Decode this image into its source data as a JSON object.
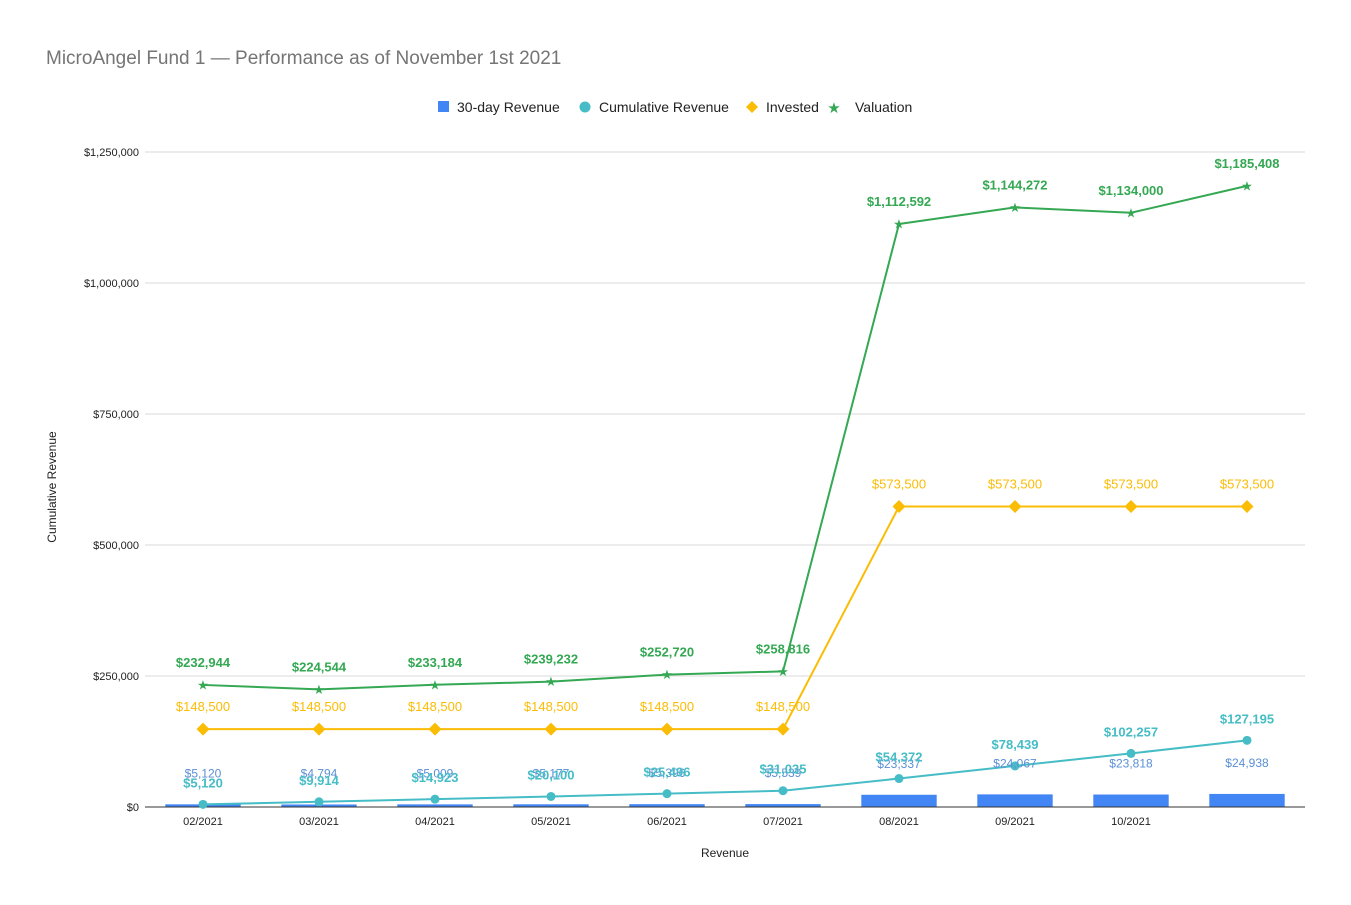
{
  "title": "MicroAngel Fund 1 — Performance as of November 1st 2021",
  "colors": {
    "revenue_30d": "#4285f4",
    "revenue_30d_label": "#5b8fd6",
    "cumulative": "#46bdc6",
    "invested": "#fbbc04",
    "valuation": "#34a853",
    "grid": "#d9d9d9",
    "axis": "#333333"
  },
  "chart_data": {
    "type": "bar+line",
    "title": "MicroAngel Fund 1 — Performance as of November 1st 2021",
    "xlabel": "Revenue",
    "ylabel": "Cumulative Revenue",
    "ylim": [
      0,
      1250000
    ],
    "yticks": [
      0,
      250000,
      500000,
      750000,
      1000000,
      1250000
    ],
    "ytick_labels": [
      "$0",
      "$250,000",
      "$500,000",
      "$750,000",
      "$1,000,000",
      "$1,250,000"
    ],
    "grid": true,
    "legend_position": "top",
    "categories": [
      "02/2021",
      "03/2021",
      "04/2021",
      "05/2021",
      "06/2021",
      "07/2021",
      "08/2021",
      "09/2021",
      "10/2021",
      ""
    ],
    "series": [
      {
        "key": "revenue_30d",
        "name": "30-day Revenue",
        "type": "bar",
        "marker": "square",
        "values": [
          5120,
          4794,
          5009,
          5177,
          5396,
          5539,
          23337,
          24067,
          23818,
          24938
        ],
        "labels": [
          "$5,120",
          "$4,794",
          "$5,009",
          "$5,177",
          "$5,396",
          "$5,539",
          "$23,337",
          "$24,067",
          "$23,818",
          "$24,938"
        ]
      },
      {
        "key": "cumulative",
        "name": "Cumulative Revenue",
        "type": "line",
        "marker": "circle",
        "values": [
          5120,
          9914,
          14923,
          20100,
          25496,
          31035,
          54372,
          78439,
          102257,
          127195
        ],
        "labels": [
          "$5,120",
          "$9,914",
          "$14,923",
          "$20,100",
          "$25,496",
          "$31,035",
          "$54,372",
          "$78,439",
          "$102,257",
          "$127,195"
        ]
      },
      {
        "key": "invested",
        "name": "Invested",
        "type": "line",
        "marker": "diamond",
        "values": [
          148500,
          148500,
          148500,
          148500,
          148500,
          148500,
          573500,
          573500,
          573500,
          573500
        ],
        "labels": [
          "$148,500",
          "$148,500",
          "$148,500",
          "$148,500",
          "$148,500",
          "$148,500",
          "$573,500",
          "$573,500",
          "$573,500",
          "$573,500"
        ]
      },
      {
        "key": "valuation",
        "name": "Valuation",
        "type": "line",
        "marker": "star",
        "values": [
          232944,
          224544,
          233184,
          239232,
          252720,
          258816,
          1112592,
          1144272,
          1134000,
          1185408
        ],
        "labels": [
          "$232,944",
          "$224,544",
          "$233,184",
          "$239,232",
          "$252,720",
          "$258,816",
          "$1,112,592",
          "$1,144,272",
          "$1,134,000",
          "$1,185,408"
        ]
      }
    ]
  }
}
